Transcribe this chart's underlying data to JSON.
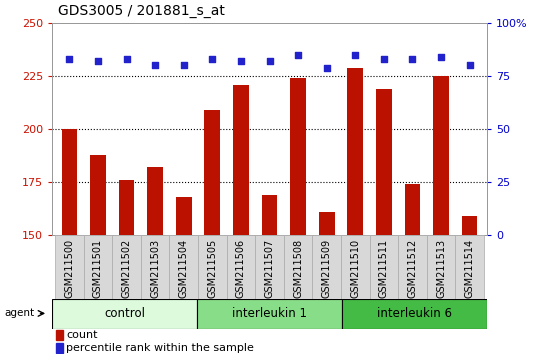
{
  "title": "GDS3005 / 201881_s_at",
  "samples": [
    "GSM211500",
    "GSM211501",
    "GSM211502",
    "GSM211503",
    "GSM211504",
    "GSM211505",
    "GSM211506",
    "GSM211507",
    "GSM211508",
    "GSM211509",
    "GSM211510",
    "GSM211511",
    "GSM211512",
    "GSM211513",
    "GSM211514"
  ],
  "counts": [
    200,
    188,
    176,
    182,
    168,
    209,
    221,
    169,
    224,
    161,
    229,
    219,
    174,
    225,
    159
  ],
  "percentiles": [
    83,
    82,
    83,
    80,
    80,
    83,
    82,
    82,
    85,
    79,
    85,
    83,
    83,
    84,
    80
  ],
  "groups": [
    {
      "label": "control",
      "start": 0,
      "end": 5,
      "color": "#ddfadd"
    },
    {
      "label": "interleukin 1",
      "start": 5,
      "end": 10,
      "color": "#88dd88"
    },
    {
      "label": "interleukin 6",
      "start": 10,
      "end": 15,
      "color": "#44bb44"
    }
  ],
  "bar_color": "#bb1100",
  "dot_color": "#2222cc",
  "ylim_left": [
    150,
    250
  ],
  "ylim_right": [
    0,
    100
  ],
  "yticks_left": [
    150,
    175,
    200,
    225,
    250
  ],
  "yticks_right": [
    0,
    25,
    50,
    75,
    100
  ],
  "grid_values": [
    175,
    200,
    225
  ],
  "title_fontsize": 10,
  "tick_label_fontsize": 7,
  "axis_label_color_left": "#cc1100",
  "axis_label_color_right": "#0000cc",
  "background_color": "#ffffff",
  "group_label_fontsize": 8.5,
  "sample_box_color": "#d8d8d8",
  "sample_box_edge": "#aaaaaa"
}
